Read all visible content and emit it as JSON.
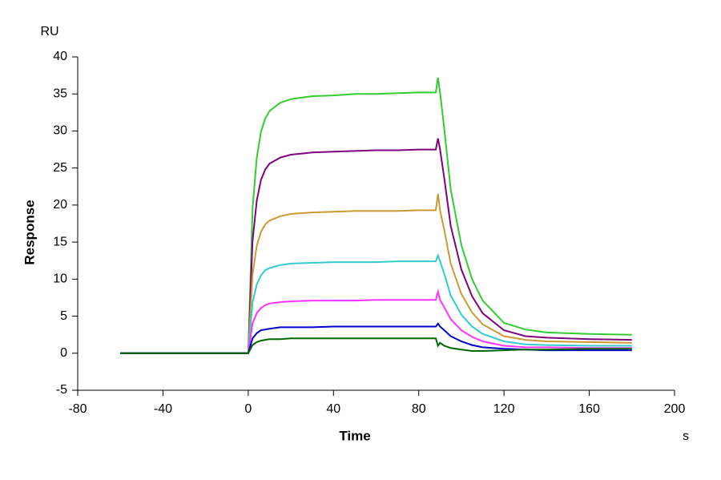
{
  "chart_data": {
    "type": "line",
    "y_unit": "RU",
    "ylabel": "Response",
    "xlabel": "Time",
    "x_unit": "s",
    "x": [
      -60,
      -50,
      -40,
      -30,
      -20,
      -10,
      -1,
      0,
      2,
      4,
      6,
      8,
      10,
      15,
      20,
      30,
      40,
      50,
      60,
      70,
      80,
      88,
      89,
      90,
      92,
      95,
      100,
      105,
      110,
      120,
      130,
      140,
      160,
      180
    ],
    "series": [
      {
        "color": "#33cc33",
        "values": [
          0,
          0,
          0,
          0,
          0,
          0,
          0,
          0,
          19.4,
          26.4,
          29.9,
          31.7,
          32.7,
          33.8,
          34.3,
          34.7,
          34.8,
          35.0,
          35.0,
          35.1,
          35.2,
          35.2,
          37.2,
          35.2,
          30.3,
          22.1,
          14.6,
          10.0,
          7.1,
          4.1,
          3.2,
          2.8,
          2.6,
          2.5
        ]
      },
      {
        "color": "#800080",
        "values": [
          0,
          0,
          0,
          0,
          0,
          0,
          0,
          0,
          15.1,
          20.6,
          23.4,
          24.8,
          25.6,
          26.4,
          26.8,
          27.1,
          27.2,
          27.3,
          27.4,
          27.4,
          27.5,
          27.5,
          29.0,
          27.5,
          23.6,
          17.2,
          11.3,
          7.7,
          5.4,
          3.1,
          2.3,
          2.1,
          1.9,
          1.8
        ]
      },
      {
        "color": "#cc9933",
        "values": [
          0,
          0,
          0,
          0,
          0,
          0,
          0,
          0,
          10.6,
          14.5,
          16.4,
          17.4,
          17.9,
          18.5,
          18.8,
          19.0,
          19.1,
          19.2,
          19.2,
          19.2,
          19.3,
          19.3,
          21.5,
          19.3,
          16.6,
          12.1,
          8.0,
          5.5,
          3.9,
          2.3,
          1.8,
          1.6,
          1.5,
          1.4
        ]
      },
      {
        "color": "#33cccc",
        "values": [
          0,
          0,
          0,
          0,
          0,
          0,
          0,
          0,
          6.8,
          9.3,
          10.5,
          11.2,
          11.5,
          11.9,
          12.1,
          12.2,
          12.3,
          12.3,
          12.3,
          12.4,
          12.4,
          12.4,
          13.2,
          12.4,
          10.7,
          7.8,
          5.2,
          3.6,
          2.6,
          1.6,
          1.2,
          1.1,
          1.0,
          1.0
        ]
      },
      {
        "color": "#ff33ff",
        "values": [
          0,
          0,
          0,
          0,
          0,
          0,
          0,
          0,
          4.0,
          5.4,
          6.1,
          6.5,
          6.7,
          6.9,
          7.0,
          7.1,
          7.1,
          7.1,
          7.2,
          7.2,
          7.2,
          7.2,
          8.3,
          7.2,
          6.2,
          4.6,
          3.1,
          2.2,
          1.6,
          1.0,
          0.8,
          0.8,
          0.7,
          0.7
        ]
      },
      {
        "color": "#0000cc",
        "values": [
          0,
          0,
          0,
          0,
          0,
          0,
          0,
          0,
          2.0,
          2.7,
          3.1,
          3.2,
          3.3,
          3.5,
          3.5,
          3.5,
          3.6,
          3.6,
          3.6,
          3.6,
          3.6,
          3.6,
          4.0,
          3.6,
          3.1,
          2.3,
          1.6,
          1.1,
          0.8,
          0.6,
          0.5,
          0.4,
          0.4,
          0.4
        ]
      },
      {
        "color": "#006600",
        "values": [
          0,
          0,
          0,
          0,
          0,
          0,
          0,
          0,
          1.1,
          1.5,
          1.7,
          1.8,
          1.9,
          1.9,
          2.0,
          2.0,
          2.0,
          2.0,
          2.0,
          2.0,
          2.0,
          2.0,
          1.0,
          1.4,
          1.0,
          0.7,
          0.5,
          0.3,
          0.3,
          0.4,
          0.5,
          0.5,
          0.6,
          0.6
        ]
      }
    ],
    "xlim": [
      -80,
      200
    ],
    "xticks": [
      -80,
      -40,
      0,
      40,
      80,
      120,
      160,
      200
    ],
    "ylim": [
      -5,
      40
    ],
    "yticks": [
      -5,
      0,
      5,
      10,
      15,
      20,
      25,
      30,
      35,
      40
    ]
  }
}
